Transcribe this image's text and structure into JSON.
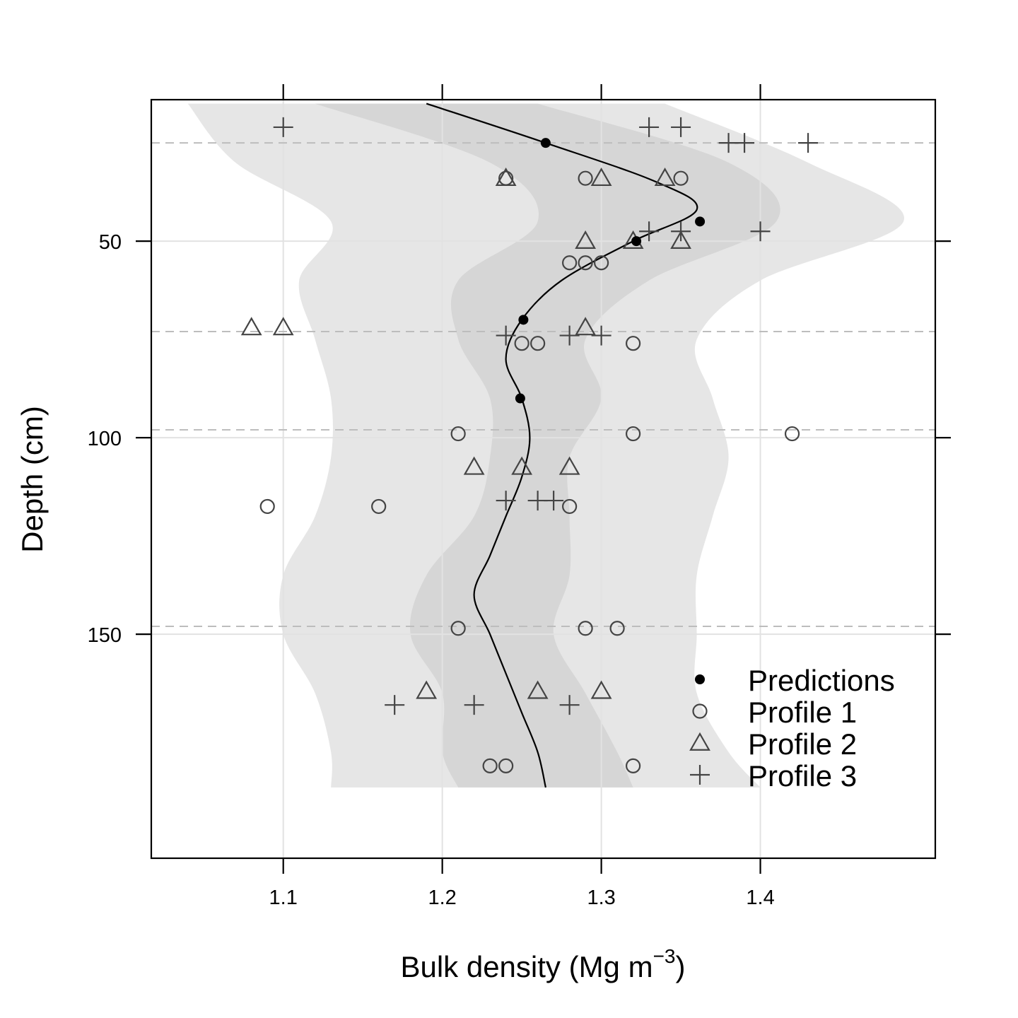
{
  "chart_data": {
    "type": "scatter",
    "xlabel": "Bulk density (Mg m",
    "xlabel_sup": "−3",
    "xlabel_close": ")",
    "ylabel": "Depth (cm)",
    "xlim": [
      1.017,
      1.51
    ],
    "ylim": [
      207,
      14
    ],
    "y_reversed": true,
    "xticks": [
      1.1,
      1.2,
      1.3,
      1.4
    ],
    "xtick_labels": [
      "1.1",
      "1.2",
      "1.3",
      "1.4"
    ],
    "yticks": [
      50,
      100,
      150
    ],
    "ytick_labels": [
      "50",
      "100",
      "150"
    ],
    "grid": true,
    "horizon_boundaries": [
      25,
      73,
      98,
      148
    ],
    "legend_position": "bottom-right",
    "legend": [
      "Predictions",
      "Profile 1",
      "Profile 2",
      "Profile 3"
    ],
    "band_outer": {
      "depth": [
        15,
        30,
        45,
        60,
        75,
        90,
        105,
        120,
        135,
        150,
        165,
        180,
        189
      ],
      "lower": [
        1.04,
        1.07,
        1.13,
        1.11,
        1.12,
        1.13,
        1.13,
        1.12,
        1.1,
        1.1,
        1.12,
        1.13,
        1.13
      ],
      "upper": [
        1.34,
        1.43,
        1.49,
        1.4,
        1.36,
        1.37,
        1.38,
        1.37,
        1.36,
        1.36,
        1.36,
        1.38,
        1.4
      ]
    },
    "band_inner": {
      "depth": [
        15,
        30,
        45,
        60,
        75,
        90,
        105,
        120,
        135,
        150,
        165,
        180,
        189
      ],
      "lower": [
        1.12,
        1.23,
        1.26,
        1.21,
        1.21,
        1.23,
        1.23,
        1.22,
        1.19,
        1.18,
        1.2,
        1.2,
        1.21
      ],
      "upper": [
        1.26,
        1.38,
        1.41,
        1.33,
        1.29,
        1.3,
        1.28,
        1.28,
        1.28,
        1.27,
        1.29,
        1.31,
        1.32
      ]
    },
    "spline": {
      "depth": [
        15,
        25,
        35,
        42,
        50,
        60,
        70,
        80,
        90,
        100,
        110,
        120,
        130,
        140,
        150,
        160,
        170,
        180,
        189
      ],
      "value": [
        1.19,
        1.265,
        1.335,
        1.36,
        1.32,
        1.275,
        1.25,
        1.24,
        1.25,
        1.255,
        1.25,
        1.24,
        1.23,
        1.22,
        1.23,
        1.24,
        1.25,
        1.26,
        1.265
      ]
    },
    "series": [
      {
        "name": "Predictions",
        "marker": "dot",
        "points": [
          [
            1.265,
            25
          ],
          [
            1.362,
            45
          ],
          [
            1.322,
            50
          ],
          [
            1.251,
            70
          ],
          [
            1.249,
            90
          ]
        ]
      },
      {
        "name": "Profile 1",
        "marker": "circle",
        "points": [
          [
            1.24,
            34
          ],
          [
            1.29,
            34
          ],
          [
            1.35,
            34
          ],
          [
            1.28,
            55.5
          ],
          [
            1.29,
            55.5
          ],
          [
            1.3,
            55.5
          ],
          [
            1.25,
            76
          ],
          [
            1.26,
            76
          ],
          [
            1.32,
            76
          ],
          [
            1.21,
            99
          ],
          [
            1.32,
            99
          ],
          [
            1.42,
            99
          ],
          [
            1.09,
            117.5
          ],
          [
            1.16,
            117.5
          ],
          [
            1.28,
            117.5
          ],
          [
            1.21,
            148.5
          ],
          [
            1.29,
            148.5
          ],
          [
            1.31,
            148.5
          ],
          [
            1.23,
            183.5
          ],
          [
            1.24,
            183.5
          ],
          [
            1.32,
            183.5
          ]
        ]
      },
      {
        "name": "Profile 2",
        "marker": "triangle",
        "points": [
          [
            1.24,
            34
          ],
          [
            1.3,
            34
          ],
          [
            1.34,
            34
          ],
          [
            1.29,
            50
          ],
          [
            1.32,
            50
          ],
          [
            1.35,
            50
          ],
          [
            1.08,
            72
          ],
          [
            1.1,
            72
          ],
          [
            1.29,
            72
          ],
          [
            1.22,
            107.5
          ],
          [
            1.25,
            107.5
          ],
          [
            1.28,
            107.5
          ],
          [
            1.19,
            164.5
          ],
          [
            1.26,
            164.5
          ],
          [
            1.3,
            164.5
          ]
        ]
      },
      {
        "name": "Profile 3",
        "marker": "plus",
        "points": [
          [
            1.1,
            21
          ],
          [
            1.33,
            21
          ],
          [
            1.35,
            21
          ],
          [
            1.38,
            25
          ],
          [
            1.39,
            25
          ],
          [
            1.43,
            25
          ],
          [
            1.33,
            47.5
          ],
          [
            1.35,
            47.5
          ],
          [
            1.4,
            47.5
          ],
          [
            1.24,
            74
          ],
          [
            1.28,
            74
          ],
          [
            1.3,
            74
          ],
          [
            1.24,
            116
          ],
          [
            1.26,
            116
          ],
          [
            1.27,
            116
          ],
          [
            1.17,
            168
          ],
          [
            1.22,
            168
          ],
          [
            1.28,
            168
          ]
        ]
      }
    ]
  }
}
